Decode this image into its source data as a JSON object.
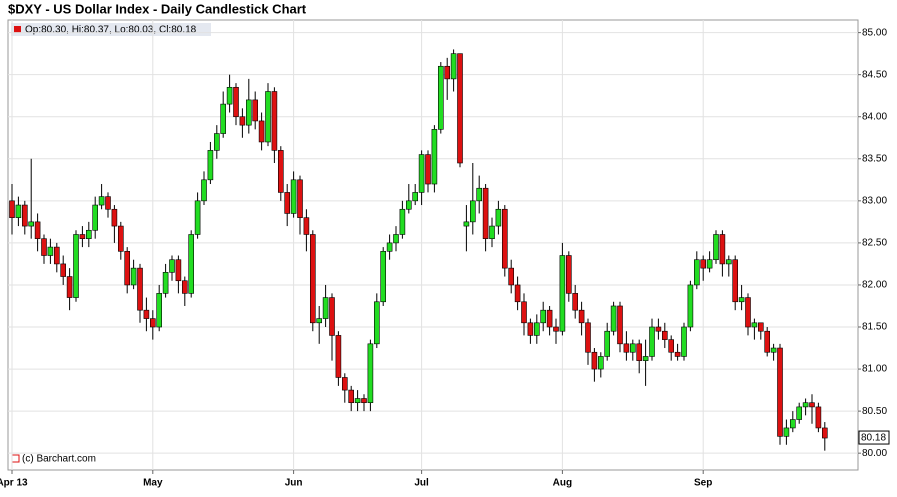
{
  "chart_data": {
    "type": "candlestick",
    "title": "$DXY - US Dollar Index - Daily Candlestick Chart",
    "legend": "Op:80.30, Hi:80.37, Lo:80.03, Cl:80.18",
    "last_label": "80.18",
    "credit": "(c) Barchart.com",
    "up_color": "#22dd22",
    "down_color": "#dd1111",
    "grid": true,
    "categories": [
      "Apr 13",
      null,
      null,
      null,
      null,
      null,
      null,
      null,
      null,
      null,
      null,
      null,
      null,
      null,
      null,
      null,
      null,
      null,
      null,
      null,
      null,
      null,
      "May",
      null,
      null,
      null,
      null,
      null,
      null,
      null,
      null,
      null,
      null,
      null,
      null,
      null,
      null,
      null,
      null,
      null,
      null,
      null,
      null,
      null,
      "Jun",
      null,
      null,
      null,
      null,
      null,
      null,
      null,
      null,
      null,
      null,
      null,
      null,
      null,
      null,
      null,
      null,
      null,
      null,
      null,
      "Jul",
      null,
      null,
      null,
      null,
      null,
      null,
      null,
      null,
      null,
      null,
      null,
      null,
      null,
      null,
      null,
      null,
      null,
      null,
      null,
      null,
      null,
      "Aug",
      null,
      null,
      null,
      null,
      null,
      null,
      null,
      null,
      null,
      null,
      null,
      null,
      null,
      null,
      null,
      null,
      null,
      null,
      null,
      null,
      null,
      "Sep",
      null,
      null,
      null,
      null,
      null,
      null,
      null,
      null,
      null,
      null,
      null,
      null,
      null,
      null,
      null,
      null,
      null,
      null,
      null
    ],
    "open": [
      83.0,
      82.8,
      82.95,
      82.7,
      82.75,
      82.55,
      82.35,
      82.45,
      82.25,
      82.1,
      81.85,
      82.6,
      82.55,
      82.65,
      82.95,
      83.05,
      82.9,
      82.7,
      82.4,
      82.0,
      82.2,
      81.7,
      81.6,
      81.5,
      81.9,
      82.15,
      82.3,
      82.05,
      81.9,
      82.6,
      83.0,
      83.25,
      83.6,
      83.8,
      84.15,
      84.35,
      84.0,
      83.9,
      84.2,
      83.95,
      83.7,
      84.3,
      83.6,
      83.1,
      82.85,
      83.25,
      82.8,
      82.6,
      81.55,
      81.6,
      81.85,
      81.4,
      80.9,
      80.75,
      80.6,
      80.65,
      80.6,
      81.3,
      81.8,
      82.4,
      82.5,
      82.6,
      82.9,
      83.0,
      83.1,
      83.55,
      83.2,
      83.85,
      84.6,
      84.45,
      84.75,
      82.7,
      82.75,
      83.0,
      83.15,
      82.55,
      82.7,
      82.9,
      82.2,
      82.0,
      81.8,
      81.55,
      81.4,
      81.55,
      81.7,
      81.5,
      81.45,
      82.35,
      81.9,
      81.7,
      81.55,
      81.2,
      81.0,
      81.15,
      81.45,
      81.75,
      81.3,
      81.2,
      81.3,
      81.1,
      81.15,
      81.5,
      81.45,
      81.35,
      81.2,
      81.15,
      81.5,
      82.0,
      82.3,
      82.2,
      82.3,
      82.6,
      82.25,
      82.3,
      81.8,
      81.85,
      81.5,
      81.55,
      81.45,
      81.2,
      81.25,
      80.2,
      80.3,
      80.4,
      80.55,
      80.6,
      80.55,
      80.3
    ],
    "high": [
      83.2,
      83.05,
      83.0,
      83.5,
      82.85,
      82.6,
      82.55,
      82.5,
      82.35,
      82.2,
      82.65,
      82.7,
      82.75,
      83.05,
      83.2,
      83.1,
      82.95,
      82.75,
      82.45,
      82.3,
      82.25,
      81.85,
      81.7,
      82.0,
      82.25,
      82.35,
      82.35,
      82.1,
      82.65,
      83.1,
      83.35,
      83.7,
      83.9,
      84.3,
      84.5,
      84.4,
      84.1,
      84.45,
      84.3,
      84.05,
      84.4,
      84.35,
      83.65,
      83.2,
      83.35,
      83.3,
      82.9,
      82.65,
      81.75,
      82.0,
      81.9,
      81.45,
      80.95,
      80.8,
      80.75,
      80.7,
      81.35,
      81.9,
      82.45,
      82.6,
      82.7,
      83.0,
      83.2,
      83.2,
      83.6,
      83.6,
      83.9,
      84.65,
      84.7,
      84.8,
      84.75,
      82.95,
      83.45,
      83.3,
      83.2,
      82.8,
      83.0,
      82.95,
      82.3,
      82.1,
      81.9,
      81.6,
      81.65,
      81.8,
      81.75,
      81.6,
      82.5,
      82.4,
      82.0,
      81.8,
      81.6,
      81.25,
      81.2,
      81.55,
      81.8,
      81.8,
      81.45,
      81.35,
      81.35,
      81.35,
      81.6,
      81.6,
      81.55,
      81.4,
      81.3,
      81.55,
      82.05,
      82.4,
      82.35,
      82.4,
      82.65,
      82.65,
      82.35,
      82.35,
      82.0,
      81.9,
      81.6,
      81.55,
      81.5,
      81.3,
      81.3,
      80.4,
      80.5,
      80.6,
      80.65,
      80.7,
      80.6,
      80.37
    ],
    "low": [
      82.6,
      82.7,
      82.6,
      82.55,
      82.4,
      82.25,
      82.25,
      82.15,
      82.0,
      81.7,
      81.8,
      82.45,
      82.45,
      82.55,
      82.9,
      82.8,
      82.5,
      82.3,
      81.9,
      81.95,
      81.55,
      81.45,
      81.35,
      81.45,
      81.85,
      82.05,
      81.9,
      81.75,
      81.85,
      82.55,
      82.95,
      83.2,
      83.5,
      83.75,
      84.05,
      83.9,
      83.75,
      83.8,
      83.85,
      83.6,
      83.65,
      83.45,
      83.0,
      82.7,
      82.8,
      82.6,
      82.4,
      81.45,
      81.3,
      81.5,
      81.1,
      80.8,
      80.6,
      80.5,
      80.5,
      80.5,
      80.5,
      81.25,
      81.75,
      82.3,
      82.4,
      82.55,
      82.85,
      82.95,
      82.95,
      83.1,
      83.1,
      83.8,
      84.2,
      84.3,
      83.4,
      82.4,
      82.6,
      82.85,
      82.4,
      82.45,
      82.6,
      82.1,
      81.9,
      81.7,
      81.4,
      81.3,
      81.3,
      81.45,
      81.4,
      81.3,
      81.4,
      81.8,
      81.6,
      81.4,
      81.05,
      80.85,
      80.9,
      81.1,
      81.4,
      81.2,
      81.1,
      81.1,
      80.95,
      80.8,
      81.1,
      81.35,
      81.25,
      81.1,
      81.1,
      81.1,
      81.45,
      81.95,
      82.05,
      82.15,
      82.25,
      82.1,
      82.1,
      81.7,
      81.7,
      81.4,
      81.35,
      81.35,
      81.15,
      81.1,
      80.1,
      80.1,
      80.25,
      80.35,
      80.45,
      80.35,
      80.25,
      80.03
    ],
    "close": [
      82.8,
      82.95,
      82.7,
      82.75,
      82.55,
      82.35,
      82.45,
      82.25,
      82.1,
      81.85,
      82.6,
      82.55,
      82.65,
      82.95,
      83.05,
      82.9,
      82.7,
      82.4,
      82.0,
      82.2,
      81.7,
      81.6,
      81.5,
      81.9,
      82.15,
      82.3,
      82.05,
      81.9,
      82.6,
      83.0,
      83.25,
      83.6,
      83.8,
      84.15,
      84.35,
      84.0,
      83.9,
      84.2,
      83.95,
      83.7,
      84.3,
      83.6,
      83.1,
      82.85,
      83.25,
      82.8,
      82.6,
      81.55,
      81.6,
      81.85,
      81.4,
      80.9,
      80.75,
      80.6,
      80.65,
      80.6,
      81.3,
      81.8,
      82.4,
      82.5,
      82.6,
      82.9,
      83.0,
      83.1,
      83.55,
      83.2,
      83.85,
      84.6,
      84.45,
      84.75,
      83.45,
      82.75,
      83.0,
      83.15,
      82.55,
      82.7,
      82.9,
      82.2,
      82.0,
      81.8,
      81.55,
      81.4,
      81.55,
      81.7,
      81.5,
      81.45,
      82.35,
      81.9,
      81.7,
      81.55,
      81.2,
      81.0,
      81.15,
      81.45,
      81.75,
      81.3,
      81.2,
      81.3,
      81.1,
      81.15,
      81.5,
      81.45,
      81.35,
      81.2,
      81.15,
      81.5,
      82.0,
      82.3,
      82.2,
      82.3,
      82.6,
      82.25,
      82.3,
      81.8,
      81.85,
      81.5,
      81.55,
      81.45,
      81.2,
      81.25,
      80.2,
      80.3,
      80.4,
      80.55,
      80.6,
      80.55,
      80.3,
      80.18
    ],
    "ylim": [
      79.8,
      85.15
    ],
    "yticks": [
      {
        "value": 80,
        "label": "80.00"
      },
      {
        "value": 80.5,
        "label": "80.50"
      },
      {
        "value": 81,
        "label": "81.00"
      },
      {
        "value": 81.5,
        "label": "81.50"
      },
      {
        "value": 82,
        "label": "82.00"
      },
      {
        "value": 82.5,
        "label": "82.50"
      },
      {
        "value": 83,
        "label": "83.00"
      },
      {
        "value": 83.5,
        "label": "83.50"
      },
      {
        "value": 84,
        "label": "84.00"
      },
      {
        "value": 84.5,
        "label": "84.50"
      },
      {
        "value": 85,
        "label": "85.00"
      }
    ]
  }
}
